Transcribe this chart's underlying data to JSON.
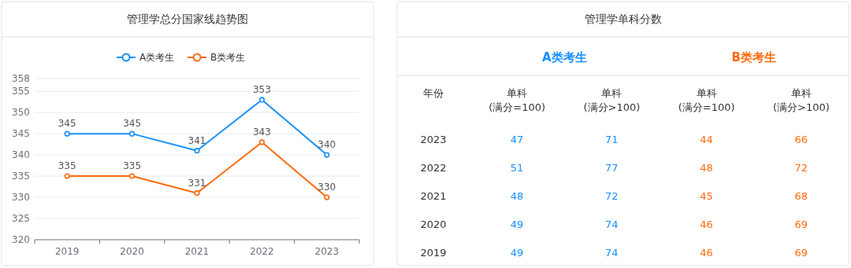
{
  "chart_data": [
    {
      "type": "line",
      "title": "管理学总分国家线趋势图",
      "categories": [
        "2019",
        "2020",
        "2021",
        "2022",
        "2023"
      ],
      "series": [
        {
          "name": "A类考生",
          "color": "#1890ff",
          "values": [
            345,
            345,
            341,
            353,
            340
          ]
        },
        {
          "name": "B类考生",
          "color": "#ff6a0f",
          "values": [
            335,
            335,
            331,
            343,
            330
          ]
        }
      ],
      "ylim": [
        320,
        358
      ],
      "yticks": [
        320,
        325,
        330,
        335,
        340,
        345,
        350,
        355,
        358
      ],
      "grid": "y",
      "legend": "top",
      "marker": "circle",
      "data_labels": true
    },
    {
      "type": "heatmap",
      "title": "管理学单科分数",
      "ylabel": "年份",
      "categories": [
        "单科\n(满分=100)",
        "单科\n(满分>100)",
        "单科\n(满分=100)",
        "单科\n(满分>100)"
      ],
      "y_categories": [
        "2023",
        "2022",
        "2021",
        "2020",
        "2019"
      ],
      "annotations": [
        "A类考生",
        "B类考生"
      ],
      "colors": [
        "#1890ff",
        "#1890ff",
        "#ff6a0f",
        "#ff6a0f"
      ],
      "cells": [
        [
          47,
          71,
          44,
          66
        ],
        [
          51,
          77,
          48,
          72
        ],
        [
          48,
          72,
          45,
          68
        ],
        [
          49,
          74,
          46,
          69
        ],
        [
          49,
          74,
          46,
          69
        ]
      ],
      "data_labels": true
    }
  ]
}
